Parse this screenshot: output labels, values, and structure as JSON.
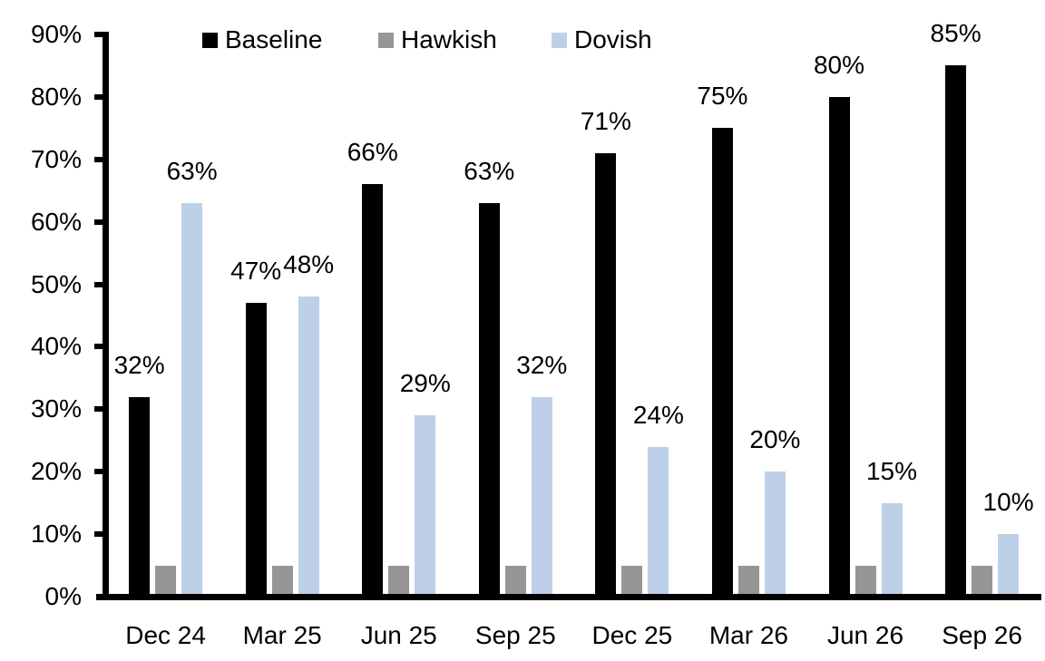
{
  "chart_data": {
    "type": "bar",
    "title": "",
    "categories": [
      "Dec 24",
      "Mar 25",
      "Jun 25",
      "Sep 25",
      "Dec 25",
      "Mar 26",
      "Jun 26",
      "Sep 26"
    ],
    "series": [
      {
        "name": "Baseline",
        "color": "#000000",
        "values": [
          32,
          47,
          66,
          63,
          71,
          75,
          80,
          85
        ],
        "labels": [
          "32%",
          "47%",
          "66%",
          "63%",
          "71%",
          "75%",
          "80%",
          "85%"
        ]
      },
      {
        "name": "Hawkish",
        "color": "#969696",
        "values": [
          5,
          5,
          5,
          5,
          5,
          5,
          5,
          5
        ],
        "labels": null
      },
      {
        "name": "Dovish",
        "color": "#BDD0E8",
        "values": [
          63,
          48,
          29,
          32,
          24,
          20,
          15,
          10
        ],
        "labels": [
          "63%",
          "48%",
          "29%",
          "32%",
          "24%",
          "20%",
          "15%",
          "10%"
        ]
      }
    ],
    "ylim": [
      0,
      90
    ],
    "yticks": [
      "0%",
      "10%",
      "20%",
      "30%",
      "40%",
      "50%",
      "60%",
      "70%",
      "80%",
      "90%"
    ],
    "ytick_values": [
      0,
      10,
      20,
      30,
      40,
      50,
      60,
      70,
      80,
      90
    ],
    "legend_position": "top",
    "grid": false,
    "axis_color": "#000000",
    "background_color": "#ffffff"
  }
}
